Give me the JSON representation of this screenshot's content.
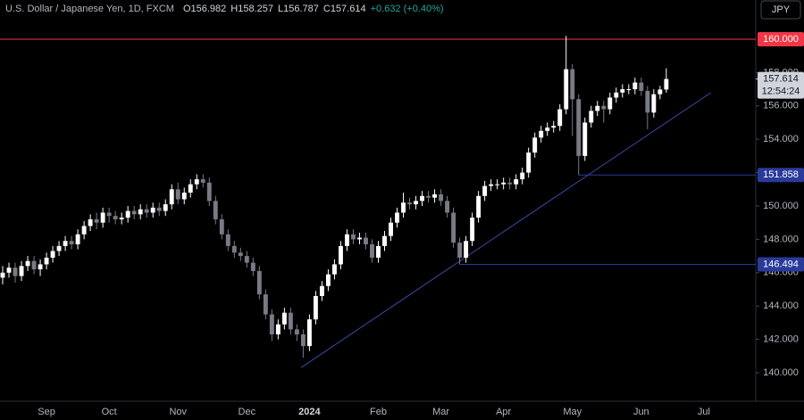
{
  "chart_data": {
    "type": "candlestick",
    "header": {
      "symbol": "U.S. Dollar / Japanese Yen, 1D, FXCM",
      "open": "O156.982",
      "high": "H158.257",
      "low": "L156.787",
      "close": "C157.614",
      "change": "+0.632 (+0.40%)"
    },
    "currency": "JPY",
    "countdown": "12:54:24",
    "up_color": "#ffffff",
    "down_color": "#787b86",
    "categories": [
      null,
      null,
      null,
      null,
      null,
      null,
      null,
      "Sep",
      null,
      null,
      null,
      null,
      null,
      null,
      null,
      null,
      null,
      "Oct",
      null,
      null,
      null,
      null,
      null,
      null,
      null,
      null,
      null,
      null,
      "Nov",
      null,
      null,
      null,
      null,
      null,
      null,
      null,
      null,
      null,
      null,
      "Dec",
      null,
      null,
      null,
      null,
      null,
      null,
      null,
      null,
      null,
      "2024",
      null,
      null,
      null,
      null,
      null,
      null,
      null,
      null,
      null,
      null,
      "Feb",
      null,
      null,
      null,
      null,
      null,
      null,
      null,
      null,
      null,
      "Mar",
      null,
      null,
      null,
      null,
      null,
      null,
      null,
      null,
      null,
      "Apr",
      null,
      null,
      null,
      null,
      null,
      null,
      null,
      null,
      null,
      null,
      "May",
      null,
      null,
      null,
      null,
      null,
      null,
      null,
      null,
      null,
      null,
      "Jun",
      null,
      null,
      null,
      null,
      null,
      null,
      null,
      null,
      null,
      "Jul"
    ],
    "open": [
      145.7,
      146.0,
      146.3,
      145.8,
      146.4,
      146.7,
      146.2,
      146.5,
      146.9,
      147.3,
      147.6,
      147.9,
      147.7,
      148.3,
      148.8,
      149.2,
      149.0,
      149.6,
      149.4,
      149.2,
      149.3,
      149.7,
      149.5,
      149.8,
      149.6,
      149.9,
      149.7,
      150.1,
      151.0,
      150.4,
      150.8,
      151.3,
      151.6,
      151.4,
      150.3,
      149.2,
      148.3,
      147.6,
      147.2,
      147.0,
      146.6,
      146.1,
      144.7,
      143.5,
      142.3,
      142.9,
      143.6,
      142.6,
      142.3,
      141.6,
      143.2,
      144.6,
      145.2,
      145.9,
      146.5,
      147.6,
      148.3,
      148.0,
      148.1,
      147.7,
      146.9,
      147.6,
      148.2,
      149.0,
      149.6,
      150.2,
      150.1,
      150.3,
      150.6,
      150.5,
      150.7,
      150.3,
      149.6,
      147.8,
      146.9,
      147.9,
      149.3,
      150.6,
      151.2,
      151.3,
      151.3,
      151.4,
      151.3,
      151.6,
      152.0,
      153.2,
      154.1,
      154.5,
      154.7,
      154.8,
      155.8,
      158.2,
      156.4,
      153.0,
      155.0,
      155.7,
      156.0,
      155.8,
      156.5,
      156.8,
      157.0,
      157.0,
      157.4,
      156.9,
      155.6,
      156.7,
      156.982,
      null,
      null,
      null,
      null,
      null,
      null
    ],
    "high": [
      146.4,
      146.6,
      146.6,
      146.7,
      147.0,
      147.0,
      146.8,
      147.2,
      147.6,
      147.9,
      148.2,
      148.2,
      148.6,
      149.1,
      149.5,
      149.6,
      149.9,
      149.9,
      149.7,
      149.6,
      150.0,
      150.0,
      150.1,
      150.1,
      150.2,
      150.2,
      150.4,
      151.3,
      151.4,
      151.1,
      151.6,
      151.9,
      151.9,
      151.7,
      150.6,
      149.5,
      148.6,
      147.9,
      147.5,
      147.3,
      146.9,
      146.4,
      145.0,
      143.8,
      143.2,
      143.9,
      143.9,
      142.9,
      142.6,
      143.5,
      144.9,
      145.5,
      146.2,
      146.8,
      147.9,
      148.6,
      148.6,
      148.4,
      148.4,
      148.0,
      147.9,
      148.5,
      149.3,
      149.9,
      150.8,
      150.5,
      150.6,
      150.9,
      150.9,
      151.0,
      151.0,
      150.6,
      149.9,
      148.1,
      148.2,
      149.6,
      150.9,
      151.5,
      151.6,
      151.6,
      151.7,
      151.7,
      151.9,
      152.3,
      153.5,
      154.4,
      154.8,
      155.0,
      155.1,
      156.1,
      160.2,
      158.5,
      156.7,
      155.3,
      156.0,
      156.3,
      156.3,
      156.8,
      157.1,
      157.3,
      157.3,
      157.7,
      157.7,
      157.2,
      157.0,
      157.2,
      158.257,
      null,
      null,
      null,
      null,
      null,
      null
    ],
    "low": [
      145.3,
      145.7,
      145.4,
      145.5,
      146.1,
      145.9,
      145.8,
      146.2,
      146.6,
      147.0,
      147.3,
      147.4,
      147.4,
      148.0,
      148.5,
      148.6,
      148.7,
      149.0,
      148.9,
      148.9,
      149.0,
      149.2,
      149.2,
      149.3,
      149.3,
      149.4,
      149.4,
      149.8,
      150.1,
      150.1,
      150.5,
      151.0,
      151.1,
      150.0,
      148.9,
      148.0,
      147.3,
      146.9,
      146.7,
      146.3,
      145.8,
      144.4,
      143.2,
      141.9,
      142.0,
      142.6,
      142.3,
      141.9,
      140.9,
      141.3,
      142.9,
      144.3,
      144.9,
      145.6,
      146.2,
      147.3,
      147.7,
      147.7,
      147.4,
      146.6,
      146.6,
      147.3,
      147.9,
      148.7,
      149.3,
      149.8,
      149.8,
      150.0,
      150.2,
      150.2,
      150.0,
      149.3,
      147.5,
      146.494,
      146.6,
      147.6,
      149.0,
      150.3,
      150.9,
      151.0,
      151.0,
      151.0,
      151.0,
      151.3,
      151.7,
      152.9,
      153.8,
      154.2,
      154.4,
      154.5,
      155.5,
      154.2,
      151.858,
      152.7,
      154.7,
      155.4,
      155.0,
      155.5,
      156.2,
      156.5,
      156.7,
      156.7,
      156.6,
      154.6,
      155.3,
      156.4,
      156.787,
      null,
      null,
      null,
      null,
      null,
      null
    ],
    "close": [
      146.0,
      146.3,
      145.8,
      146.4,
      146.7,
      146.2,
      146.5,
      146.9,
      147.3,
      147.6,
      147.9,
      147.7,
      148.3,
      148.8,
      149.2,
      149.0,
      149.6,
      149.4,
      149.2,
      149.3,
      149.7,
      149.5,
      149.8,
      149.6,
      149.9,
      149.7,
      150.1,
      151.0,
      150.4,
      150.8,
      151.3,
      151.6,
      151.4,
      150.3,
      149.2,
      148.3,
      147.6,
      147.2,
      147.0,
      146.6,
      146.1,
      144.7,
      143.5,
      142.3,
      142.9,
      143.6,
      142.6,
      142.3,
      141.6,
      143.2,
      144.6,
      145.2,
      145.9,
      146.5,
      147.6,
      148.3,
      148.0,
      148.1,
      147.7,
      146.9,
      147.6,
      148.2,
      149.0,
      149.6,
      150.2,
      150.1,
      150.3,
      150.6,
      150.5,
      150.7,
      150.3,
      149.6,
      147.8,
      146.9,
      147.9,
      149.3,
      150.6,
      151.2,
      151.3,
      151.3,
      151.4,
      151.3,
      151.6,
      152.0,
      153.2,
      154.1,
      154.5,
      154.7,
      154.8,
      155.8,
      158.2,
      156.4,
      153.0,
      155.0,
      155.7,
      156.0,
      155.8,
      156.5,
      156.8,
      157.0,
      157.0,
      157.4,
      156.9,
      155.6,
      156.7,
      156.982,
      157.614,
      null,
      null,
      null,
      null,
      null,
      null
    ],
    "xlim": [
      -0.43,
      120.29
    ],
    "ylim": [
      138.29,
      162.35
    ],
    "yticks": [
      {
        "value": 140,
        "label": "140.000"
      },
      {
        "value": 142,
        "label": "142.000"
      },
      {
        "value": 144,
        "label": "144.000"
      },
      {
        "value": 146,
        "label": "146.000"
      },
      {
        "value": 148,
        "label": "148.000"
      },
      {
        "value": 150,
        "label": "150.000"
      },
      {
        "value": 152,
        "label": "152.000"
      },
      {
        "value": 154,
        "label": "154.000"
      },
      {
        "value": 156,
        "label": "156.000"
      },
      {
        "value": 158,
        "label": "158.000"
      }
    ],
    "levels": [
      {
        "value": 160,
        "label": "160.000",
        "color": "#f23645"
      },
      {
        "value": 151.858,
        "label": "151.858",
        "color": "#2a3a9a",
        "from": 92
      },
      {
        "value": 146.494,
        "label": "146.494",
        "color": "#2a3a9a",
        "from": 73
      }
    ],
    "last_price": {
      "value": 157.614,
      "label": "157.614"
    },
    "trendline": {
      "x": [
        47.7,
        113.1
      ],
      "y": [
        140.32,
        156.79
      ],
      "color": "#3b4aa8"
    }
  }
}
